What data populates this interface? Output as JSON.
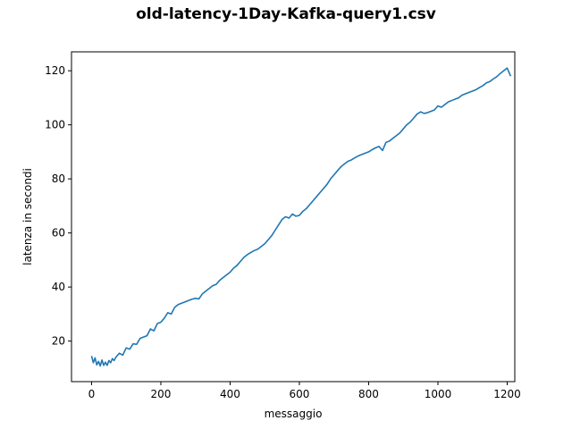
{
  "chart_data": {
    "type": "line",
    "title": "old-latency-1Day-Kafka-query1.csv",
    "xlabel": "messaggio",
    "ylabel": "latenza in secondi",
    "xlim": [
      -58,
      1222
    ],
    "ylim": [
      5,
      127
    ],
    "xticks": [
      0,
      200,
      400,
      600,
      800,
      1000,
      1200
    ],
    "yticks": [
      20,
      40,
      60,
      80,
      100,
      120
    ],
    "grid": false,
    "line_color": "#1f77b4",
    "series": [
      {
        "name": "latenza",
        "x": [
          0,
          5,
          10,
          15,
          20,
          25,
          30,
          35,
          40,
          45,
          50,
          55,
          60,
          65,
          70,
          80,
          90,
          100,
          110,
          120,
          130,
          140,
          150,
          160,
          170,
          180,
          190,
          200,
          210,
          220,
          230,
          240,
          250,
          260,
          270,
          280,
          290,
          300,
          310,
          320,
          330,
          340,
          350,
          360,
          370,
          380,
          390,
          400,
          410,
          420,
          430,
          440,
          450,
          460,
          470,
          480,
          490,
          500,
          510,
          520,
          530,
          540,
          550,
          560,
          570,
          580,
          590,
          600,
          610,
          620,
          630,
          640,
          650,
          660,
          670,
          680,
          690,
          700,
          710,
          720,
          730,
          740,
          750,
          760,
          770,
          780,
          790,
          800,
          810,
          820,
          830,
          840,
          850,
          860,
          870,
          880,
          890,
          900,
          910,
          920,
          930,
          940,
          950,
          960,
          970,
          980,
          990,
          1000,
          1010,
          1020,
          1030,
          1040,
          1050,
          1060,
          1070,
          1080,
          1090,
          1100,
          1110,
          1120,
          1130,
          1140,
          1150,
          1160,
          1170,
          1180,
          1190,
          1195,
          1200,
          1205,
          1210
        ],
        "values": [
          14.5,
          12.0,
          13.8,
          11.2,
          12.5,
          10.8,
          13.0,
          11.0,
          12.2,
          11.0,
          12.8,
          12.0,
          13.5,
          12.8,
          14.0,
          15.5,
          14.8,
          17.5,
          17.0,
          19.0,
          18.8,
          21.0,
          21.5,
          22.0,
          24.5,
          23.8,
          26.5,
          27.0,
          28.5,
          30.5,
          30.0,
          32.5,
          33.5,
          34.0,
          34.5,
          35.0,
          35.5,
          35.8,
          35.6,
          37.5,
          38.5,
          39.5,
          40.5,
          41.0,
          42.5,
          43.5,
          44.5,
          45.5,
          47.0,
          48.0,
          49.5,
          51.0,
          52.0,
          52.8,
          53.5,
          54.0,
          55.0,
          56.0,
          57.5,
          59.0,
          61.0,
          63.0,
          65.0,
          66.0,
          65.5,
          67.0,
          66.2,
          66.5,
          68.0,
          69.0,
          70.5,
          72.0,
          73.5,
          75.0,
          76.5,
          78.0,
          80.0,
          81.5,
          83.0,
          84.5,
          85.5,
          86.5,
          87.0,
          87.8,
          88.5,
          89.0,
          89.5,
          90.0,
          90.8,
          91.5,
          92.0,
          90.5,
          93.5,
          94.0,
          95.0,
          96.0,
          97.0,
          98.5,
          100.0,
          101.0,
          102.5,
          104.0,
          104.8,
          104.2,
          104.5,
          105.0,
          105.5,
          107.0,
          106.5,
          107.5,
          108.5,
          109.0,
          109.5,
          110.0,
          111.0,
          111.5,
          112.0,
          112.5,
          113.0,
          113.8,
          114.5,
          115.5,
          116.0,
          117.0,
          117.8,
          119.0,
          120.0,
          120.5,
          121.0,
          119.5,
          118.0
        ]
      }
    ]
  }
}
